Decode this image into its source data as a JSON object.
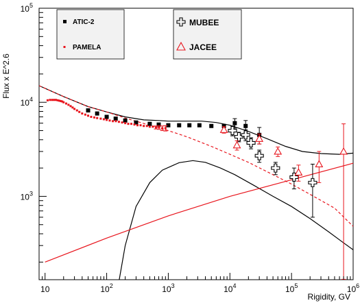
{
  "chart_data": {
    "type": "scatter",
    "xlabel": "Rigidity, GV",
    "ylabel": "Flux x E^2.6",
    "x_scale": "log",
    "y_scale": "log",
    "xlim": [
      8,
      1000000
    ],
    "ylim": [
      130,
      100000
    ],
    "x_ticks": [
      {
        "base": "10",
        "exp": "",
        "value": 10
      },
      {
        "base": "10",
        "exp": "2",
        "value": 100
      },
      {
        "base": "10",
        "exp": "3",
        "value": 1000
      },
      {
        "base": "10",
        "exp": "4",
        "value": 10000
      },
      {
        "base": "10",
        "exp": "5",
        "value": 100000
      },
      {
        "base": "10",
        "exp": "6",
        "value": 1000000
      }
    ],
    "y_ticks": [
      {
        "base": "10",
        "exp": "3",
        "value": 1000
      },
      {
        "base": "10",
        "exp": "4",
        "value": 10000
      },
      {
        "base": "10",
        "exp": "5",
        "value": 100000
      }
    ],
    "legend_left": [
      {
        "name": "ATIC-2",
        "marker": "square",
        "color": "#000000"
      },
      {
        "name": "PAMELA",
        "marker": "dot",
        "color": "#e8141c"
      }
    ],
    "legend_right": [
      {
        "name": "MUBEE",
        "marker": "cross",
        "color": "#000000"
      },
      {
        "name": "JACEE",
        "marker": "triangle",
        "color": "#e8141c"
      }
    ],
    "series": [
      {
        "name": "ATIC-2",
        "marker": "square",
        "color": "#000000",
        "points": [
          [
            50,
            8200
          ],
          [
            70,
            7600
          ],
          [
            100,
            7000
          ],
          [
            140,
            6700
          ],
          [
            200,
            6400
          ],
          [
            300,
            6100
          ],
          [
            500,
            5900
          ],
          [
            700,
            5800
          ],
          [
            1000,
            5700
          ],
          [
            1500,
            5700
          ],
          [
            2200,
            5700
          ],
          [
            3200,
            5700
          ],
          [
            5000,
            5600
          ],
          [
            8000,
            5600
          ],
          [
            12000,
            6000
          ],
          [
            18000,
            5600
          ],
          [
            30000,
            4500
          ]
        ],
        "err": [
          0,
          0,
          0,
          0,
          0,
          0,
          0,
          0,
          0,
          0,
          0,
          0,
          0,
          0,
          700,
          800,
          900
        ]
      },
      {
        "name": "PAMELA",
        "marker": "dot",
        "color": "#e8141c",
        "points": [
          [
            11,
            10500
          ],
          [
            12,
            10600
          ],
          [
            13,
            10600
          ],
          [
            14,
            10600
          ],
          [
            15,
            10600
          ],
          [
            16,
            10500
          ],
          [
            17,
            10400
          ],
          [
            18,
            10300
          ],
          [
            19,
            10200
          ],
          [
            20,
            10000
          ],
          [
            22,
            9700
          ],
          [
            24,
            9400
          ],
          [
            26,
            9100
          ],
          [
            28,
            8800
          ],
          [
            30,
            8500
          ],
          [
            33,
            8200
          ],
          [
            36,
            7900
          ],
          [
            40,
            7600
          ],
          [
            45,
            7400
          ],
          [
            50,
            7200
          ],
          [
            56,
            7000
          ],
          [
            63,
            6900
          ],
          [
            70,
            6800
          ],
          [
            80,
            6700
          ],
          [
            90,
            6600
          ],
          [
            100,
            6500
          ],
          [
            112,
            6400
          ],
          [
            126,
            6300
          ],
          [
            141,
            6300
          ],
          [
            158,
            6200
          ],
          [
            178,
            6100
          ],
          [
            200,
            6000
          ],
          [
            224,
            5900
          ],
          [
            251,
            5900
          ],
          [
            282,
            5800
          ],
          [
            316,
            5700
          ],
          [
            355,
            5700
          ],
          [
            400,
            5600
          ],
          [
            450,
            5600
          ],
          [
            500,
            5500
          ],
          [
            560,
            5500
          ],
          [
            630,
            5400
          ],
          [
            710,
            5400
          ],
          [
            800,
            5300
          ],
          [
            900,
            5300
          ]
        ],
        "err": [
          0,
          0,
          0,
          0,
          0,
          0,
          0,
          0,
          0,
          0,
          0,
          0,
          0,
          0,
          0,
          0,
          0,
          0,
          0,
          0,
          0,
          0,
          0,
          0,
          0,
          0,
          0,
          0,
          0,
          0,
          0,
          0,
          0,
          0,
          0,
          0,
          0,
          0,
          0,
          0,
          0,
          200,
          250,
          300,
          350
        ]
      },
      {
        "name": "MUBEE",
        "marker": "cross",
        "color": "#000000",
        "points": [
          [
            11000,
            5000
          ],
          [
            14000,
            4300
          ],
          [
            18000,
            4500
          ],
          [
            22000,
            3700
          ],
          [
            30000,
            2700
          ],
          [
            55000,
            2000
          ],
          [
            110000,
            1600
          ],
          [
            220000,
            1400
          ]
        ],
        "err": [
          600,
          500,
          600,
          500,
          400,
          300,
          400,
          800
        ]
      },
      {
        "name": "JACEE",
        "marker": "triangle",
        "color": "#e8141c",
        "points": [
          [
            8000,
            5100
          ],
          [
            13000,
            3500
          ],
          [
            30000,
            4100
          ],
          [
            60000,
            3000
          ],
          [
            130000,
            1800
          ],
          [
            280000,
            2200
          ],
          [
            700000,
            3000
          ]
        ],
        "err": [
          400,
          400,
          500,
          350,
          350,
          800,
          2900
        ]
      }
    ],
    "lines": [
      {
        "style": "solid",
        "color": "#000000",
        "points": [
          [
            8,
            15000
          ],
          [
            20,
            11500
          ],
          [
            50,
            9000
          ],
          [
            100,
            7900
          ],
          [
            200,
            7000
          ],
          [
            400,
            6500
          ],
          [
            700,
            6400
          ],
          [
            1000,
            6300
          ],
          [
            2000,
            6300
          ],
          [
            3500,
            6300
          ],
          [
            6000,
            6100
          ],
          [
            10000,
            5700
          ],
          [
            20000,
            4900
          ],
          [
            40000,
            4100
          ],
          [
            80000,
            3400
          ],
          [
            150000,
            3000
          ],
          [
            300000,
            2850
          ],
          [
            600000,
            2800
          ],
          [
            1000000,
            2880
          ]
        ]
      },
      {
        "style": "solid",
        "color": "#000000",
        "points": [
          [
            160,
            130
          ],
          [
            200,
            300
          ],
          [
            300,
            780
          ],
          [
            500,
            1400
          ],
          [
            800,
            1900
          ],
          [
            1500,
            2280
          ],
          [
            2500,
            2400
          ],
          [
            4000,
            2300
          ],
          [
            7000,
            2000
          ],
          [
            12000,
            1700
          ],
          [
            25000,
            1300
          ],
          [
            50000,
            1000
          ],
          [
            100000,
            780
          ],
          [
            200000,
            580
          ],
          [
            400000,
            420
          ],
          [
            700000,
            320
          ],
          [
            1000000,
            270
          ]
        ]
      },
      {
        "style": "dashed",
        "color": "#e8141c",
        "points": [
          [
            8,
            15000
          ],
          [
            20,
            11500
          ],
          [
            50,
            9000
          ],
          [
            100,
            7900
          ],
          [
            200,
            6800
          ],
          [
            500,
            5700
          ],
          [
            1000,
            5000
          ],
          [
            2000,
            4300
          ],
          [
            5000,
            3400
          ],
          [
            10000,
            2800
          ],
          [
            20000,
            2300
          ],
          [
            50000,
            1700
          ],
          [
            100000,
            1350
          ],
          [
            200000,
            1050
          ],
          [
            500000,
            750
          ],
          [
            1000000,
            480
          ]
        ]
      },
      {
        "style": "solid",
        "color": "#e8141c",
        "points": [
          [
            10,
            200
          ],
          [
            100,
            360
          ],
          [
            1000,
            620
          ],
          [
            10000,
            1000
          ],
          [
            100000,
            1500
          ],
          [
            1000000,
            2250
          ]
        ]
      }
    ]
  }
}
